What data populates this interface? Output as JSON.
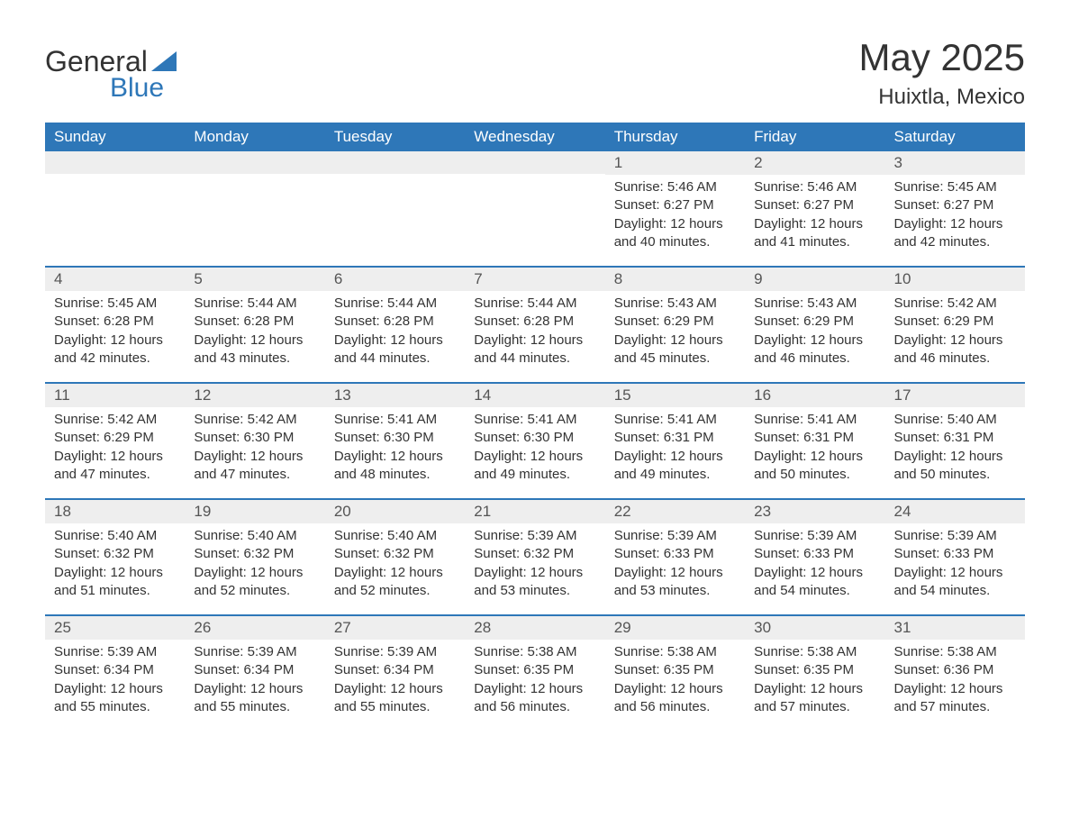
{
  "logo": {
    "text_general": "General",
    "text_blue": "Blue",
    "triangle_color": "#2e77b8"
  },
  "header": {
    "month_title": "May 2025",
    "location": "Huixtla, Mexico"
  },
  "colors": {
    "header_bg": "#2e77b8",
    "header_text": "#ffffff",
    "daynum_bg": "#eeeeee",
    "body_text": "#333333",
    "logo_blue": "#2e77b8",
    "background": "#ffffff"
  },
  "typography": {
    "month_title_fontsize": 42,
    "location_fontsize": 24,
    "weekday_fontsize": 17,
    "daynum_fontsize": 17,
    "content_fontsize": 15
  },
  "weekdays": [
    "Sunday",
    "Monday",
    "Tuesday",
    "Wednesday",
    "Thursday",
    "Friday",
    "Saturday"
  ],
  "weeks": [
    [
      {
        "daynum": "",
        "sunrise": "",
        "sunset": "",
        "daylight1": "",
        "daylight2": ""
      },
      {
        "daynum": "",
        "sunrise": "",
        "sunset": "",
        "daylight1": "",
        "daylight2": ""
      },
      {
        "daynum": "",
        "sunrise": "",
        "sunset": "",
        "daylight1": "",
        "daylight2": ""
      },
      {
        "daynum": "",
        "sunrise": "",
        "sunset": "",
        "daylight1": "",
        "daylight2": ""
      },
      {
        "daynum": "1",
        "sunrise": "Sunrise: 5:46 AM",
        "sunset": "Sunset: 6:27 PM",
        "daylight1": "Daylight: 12 hours",
        "daylight2": "and 40 minutes."
      },
      {
        "daynum": "2",
        "sunrise": "Sunrise: 5:46 AM",
        "sunset": "Sunset: 6:27 PM",
        "daylight1": "Daylight: 12 hours",
        "daylight2": "and 41 minutes."
      },
      {
        "daynum": "3",
        "sunrise": "Sunrise: 5:45 AM",
        "sunset": "Sunset: 6:27 PM",
        "daylight1": "Daylight: 12 hours",
        "daylight2": "and 42 minutes."
      }
    ],
    [
      {
        "daynum": "4",
        "sunrise": "Sunrise: 5:45 AM",
        "sunset": "Sunset: 6:28 PM",
        "daylight1": "Daylight: 12 hours",
        "daylight2": "and 42 minutes."
      },
      {
        "daynum": "5",
        "sunrise": "Sunrise: 5:44 AM",
        "sunset": "Sunset: 6:28 PM",
        "daylight1": "Daylight: 12 hours",
        "daylight2": "and 43 minutes."
      },
      {
        "daynum": "6",
        "sunrise": "Sunrise: 5:44 AM",
        "sunset": "Sunset: 6:28 PM",
        "daylight1": "Daylight: 12 hours",
        "daylight2": "and 44 minutes."
      },
      {
        "daynum": "7",
        "sunrise": "Sunrise: 5:44 AM",
        "sunset": "Sunset: 6:28 PM",
        "daylight1": "Daylight: 12 hours",
        "daylight2": "and 44 minutes."
      },
      {
        "daynum": "8",
        "sunrise": "Sunrise: 5:43 AM",
        "sunset": "Sunset: 6:29 PM",
        "daylight1": "Daylight: 12 hours",
        "daylight2": "and 45 minutes."
      },
      {
        "daynum": "9",
        "sunrise": "Sunrise: 5:43 AM",
        "sunset": "Sunset: 6:29 PM",
        "daylight1": "Daylight: 12 hours",
        "daylight2": "and 46 minutes."
      },
      {
        "daynum": "10",
        "sunrise": "Sunrise: 5:42 AM",
        "sunset": "Sunset: 6:29 PM",
        "daylight1": "Daylight: 12 hours",
        "daylight2": "and 46 minutes."
      }
    ],
    [
      {
        "daynum": "11",
        "sunrise": "Sunrise: 5:42 AM",
        "sunset": "Sunset: 6:29 PM",
        "daylight1": "Daylight: 12 hours",
        "daylight2": "and 47 minutes."
      },
      {
        "daynum": "12",
        "sunrise": "Sunrise: 5:42 AM",
        "sunset": "Sunset: 6:30 PM",
        "daylight1": "Daylight: 12 hours",
        "daylight2": "and 47 minutes."
      },
      {
        "daynum": "13",
        "sunrise": "Sunrise: 5:41 AM",
        "sunset": "Sunset: 6:30 PM",
        "daylight1": "Daylight: 12 hours",
        "daylight2": "and 48 minutes."
      },
      {
        "daynum": "14",
        "sunrise": "Sunrise: 5:41 AM",
        "sunset": "Sunset: 6:30 PM",
        "daylight1": "Daylight: 12 hours",
        "daylight2": "and 49 minutes."
      },
      {
        "daynum": "15",
        "sunrise": "Sunrise: 5:41 AM",
        "sunset": "Sunset: 6:31 PM",
        "daylight1": "Daylight: 12 hours",
        "daylight2": "and 49 minutes."
      },
      {
        "daynum": "16",
        "sunrise": "Sunrise: 5:41 AM",
        "sunset": "Sunset: 6:31 PM",
        "daylight1": "Daylight: 12 hours",
        "daylight2": "and 50 minutes."
      },
      {
        "daynum": "17",
        "sunrise": "Sunrise: 5:40 AM",
        "sunset": "Sunset: 6:31 PM",
        "daylight1": "Daylight: 12 hours",
        "daylight2": "and 50 minutes."
      }
    ],
    [
      {
        "daynum": "18",
        "sunrise": "Sunrise: 5:40 AM",
        "sunset": "Sunset: 6:32 PM",
        "daylight1": "Daylight: 12 hours",
        "daylight2": "and 51 minutes."
      },
      {
        "daynum": "19",
        "sunrise": "Sunrise: 5:40 AM",
        "sunset": "Sunset: 6:32 PM",
        "daylight1": "Daylight: 12 hours",
        "daylight2": "and 52 minutes."
      },
      {
        "daynum": "20",
        "sunrise": "Sunrise: 5:40 AM",
        "sunset": "Sunset: 6:32 PM",
        "daylight1": "Daylight: 12 hours",
        "daylight2": "and 52 minutes."
      },
      {
        "daynum": "21",
        "sunrise": "Sunrise: 5:39 AM",
        "sunset": "Sunset: 6:32 PM",
        "daylight1": "Daylight: 12 hours",
        "daylight2": "and 53 minutes."
      },
      {
        "daynum": "22",
        "sunrise": "Sunrise: 5:39 AM",
        "sunset": "Sunset: 6:33 PM",
        "daylight1": "Daylight: 12 hours",
        "daylight2": "and 53 minutes."
      },
      {
        "daynum": "23",
        "sunrise": "Sunrise: 5:39 AM",
        "sunset": "Sunset: 6:33 PM",
        "daylight1": "Daylight: 12 hours",
        "daylight2": "and 54 minutes."
      },
      {
        "daynum": "24",
        "sunrise": "Sunrise: 5:39 AM",
        "sunset": "Sunset: 6:33 PM",
        "daylight1": "Daylight: 12 hours",
        "daylight2": "and 54 minutes."
      }
    ],
    [
      {
        "daynum": "25",
        "sunrise": "Sunrise: 5:39 AM",
        "sunset": "Sunset: 6:34 PM",
        "daylight1": "Daylight: 12 hours",
        "daylight2": "and 55 minutes."
      },
      {
        "daynum": "26",
        "sunrise": "Sunrise: 5:39 AM",
        "sunset": "Sunset: 6:34 PM",
        "daylight1": "Daylight: 12 hours",
        "daylight2": "and 55 minutes."
      },
      {
        "daynum": "27",
        "sunrise": "Sunrise: 5:39 AM",
        "sunset": "Sunset: 6:34 PM",
        "daylight1": "Daylight: 12 hours",
        "daylight2": "and 55 minutes."
      },
      {
        "daynum": "28",
        "sunrise": "Sunrise: 5:38 AM",
        "sunset": "Sunset: 6:35 PM",
        "daylight1": "Daylight: 12 hours",
        "daylight2": "and 56 minutes."
      },
      {
        "daynum": "29",
        "sunrise": "Sunrise: 5:38 AM",
        "sunset": "Sunset: 6:35 PM",
        "daylight1": "Daylight: 12 hours",
        "daylight2": "and 56 minutes."
      },
      {
        "daynum": "30",
        "sunrise": "Sunrise: 5:38 AM",
        "sunset": "Sunset: 6:35 PM",
        "daylight1": "Daylight: 12 hours",
        "daylight2": "and 57 minutes."
      },
      {
        "daynum": "31",
        "sunrise": "Sunrise: 5:38 AM",
        "sunset": "Sunset: 6:36 PM",
        "daylight1": "Daylight: 12 hours",
        "daylight2": "and 57 minutes."
      }
    ]
  ]
}
